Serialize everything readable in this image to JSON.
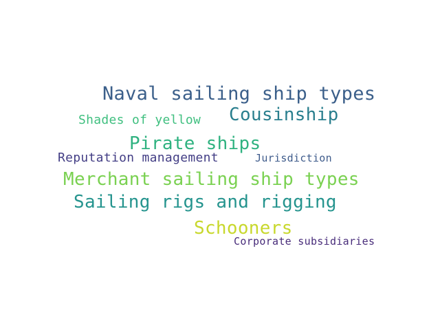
{
  "wordcloud": {
    "words": [
      {
        "text": "Naval sailing ship types",
        "color": "#3b5f8a"
      },
      {
        "text": "Cousinship",
        "color": "#2a7f8e"
      },
      {
        "text": "Shades of yellow",
        "color": "#3fbf7f"
      },
      {
        "text": "Pirate ships",
        "color": "#2fb280"
      },
      {
        "text": "Reputation management",
        "color": "#433e85"
      },
      {
        "text": "Jurisdiction",
        "color": "#3e5b8b"
      },
      {
        "text": "Merchant sailing ship types",
        "color": "#7ad151"
      },
      {
        "text": "Sailing rigs and rigging",
        "color": "#25948e"
      },
      {
        "text": "Schooners",
        "color": "#c8d82d"
      },
      {
        "text": "Corporate subsidiaries",
        "color": "#482c7a"
      }
    ]
  }
}
